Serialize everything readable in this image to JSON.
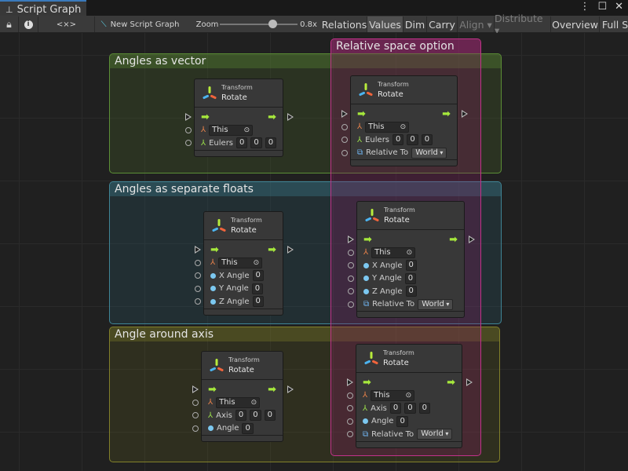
{
  "window": {
    "tab_title": "Script Graph",
    "tab_icon": "hierarchy-icon",
    "controls": [
      "more-icon",
      "maximize-icon",
      "close-icon"
    ]
  },
  "toolbar": {
    "lock_icon": "lock-icon",
    "info_icon": "info-icon",
    "variables_icon": "variables-icon",
    "variables_label": "<×>",
    "new_graph_label": "New Script Graph",
    "zoom_label": "Zoom",
    "zoom_value": "0.8x",
    "zoom_level": 0.8,
    "buttons": [
      {
        "label": "Relations",
        "enabled": true,
        "active": false
      },
      {
        "label": "Values",
        "enabled": true,
        "active": true
      },
      {
        "label": "Dim",
        "enabled": true,
        "active": false
      },
      {
        "label": "Carry",
        "enabled": true,
        "active": false
      },
      {
        "label": "Align ▾",
        "enabled": false,
        "active": false
      },
      {
        "label": "Distribute ▾",
        "enabled": false,
        "active": false
      },
      {
        "label": "Overview",
        "enabled": true,
        "active": false
      },
      {
        "label": "Full S",
        "enabled": true,
        "active": false
      }
    ]
  },
  "groups": [
    {
      "title": "Angles as vector",
      "color": "#5c8f36"
    },
    {
      "title": "Angles as separate floats",
      "color": "#3f8596"
    },
    {
      "title": "Angle around axis",
      "color": "#82802a"
    },
    {
      "title": "Relative space option",
      "color": "#c2328a"
    }
  ],
  "nodes": [
    {
      "kind": "Transform",
      "title": "Rotate",
      "rows": [
        {
          "type": "flow"
        },
        {
          "type": "object",
          "value": "This"
        },
        {
          "type": "vector",
          "label": "Eulers",
          "values": [
            "0",
            "0",
            "0"
          ]
        }
      ]
    },
    {
      "kind": "Transform",
      "title": "Rotate",
      "rows": [
        {
          "type": "flow"
        },
        {
          "type": "object",
          "value": "This"
        },
        {
          "type": "vector",
          "label": "Eulers",
          "values": [
            "0",
            "0",
            "0"
          ]
        },
        {
          "type": "enum",
          "label": "Relative To",
          "value": "World"
        }
      ]
    },
    {
      "kind": "Transform",
      "title": "Rotate",
      "rows": [
        {
          "type": "flow"
        },
        {
          "type": "object",
          "value": "This"
        },
        {
          "type": "float",
          "label": "X Angle",
          "value": "0"
        },
        {
          "type": "float",
          "label": "Y Angle",
          "value": "0"
        },
        {
          "type": "float",
          "label": "Z Angle",
          "value": "0"
        }
      ]
    },
    {
      "kind": "Transform",
      "title": "Rotate",
      "rows": [
        {
          "type": "flow"
        },
        {
          "type": "object",
          "value": "This"
        },
        {
          "type": "float",
          "label": "X Angle",
          "value": "0"
        },
        {
          "type": "float",
          "label": "Y Angle",
          "value": "0"
        },
        {
          "type": "float",
          "label": "Z Angle",
          "value": "0"
        },
        {
          "type": "enum",
          "label": "Relative To",
          "value": "World"
        }
      ]
    },
    {
      "kind": "Transform",
      "title": "Rotate",
      "rows": [
        {
          "type": "flow"
        },
        {
          "type": "object",
          "value": "This"
        },
        {
          "type": "vector",
          "label": "Axis",
          "values": [
            "0",
            "0",
            "0"
          ]
        },
        {
          "type": "float",
          "label": "Angle",
          "value": "0"
        }
      ]
    },
    {
      "kind": "Transform",
      "title": "Rotate",
      "rows": [
        {
          "type": "flow"
        },
        {
          "type": "object",
          "value": "This"
        },
        {
          "type": "vector",
          "label": "Axis",
          "values": [
            "0",
            "0",
            "0"
          ]
        },
        {
          "type": "float",
          "label": "Angle",
          "value": "0"
        },
        {
          "type": "enum",
          "label": "Relative To",
          "value": "World"
        }
      ]
    }
  ]
}
